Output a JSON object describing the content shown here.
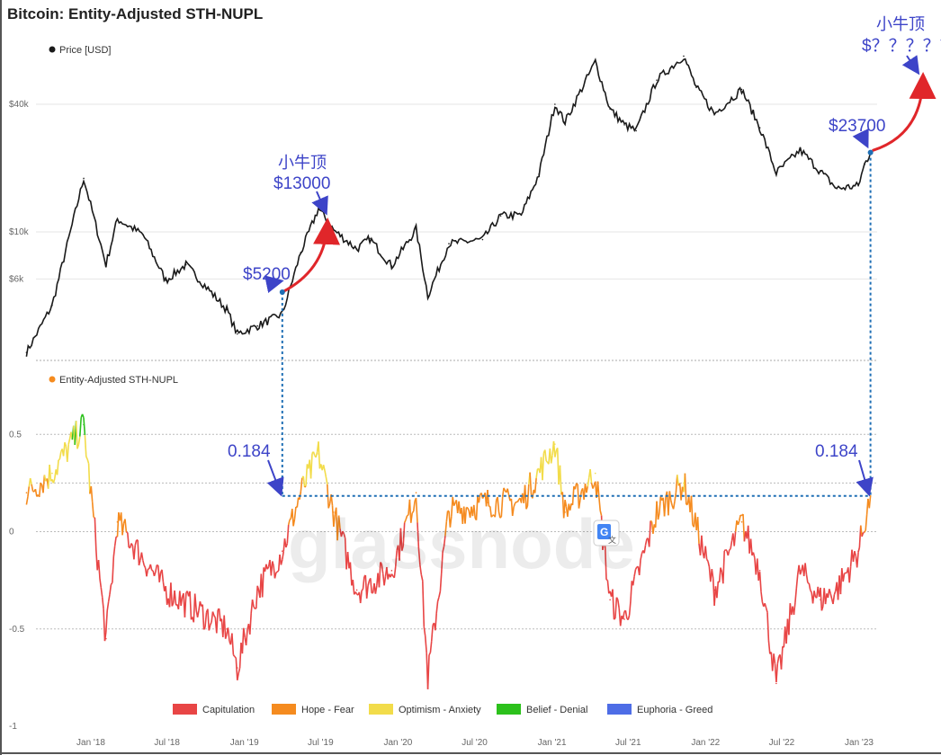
{
  "title": "Bitcoin: Entity-Adjusted STH-NUPL",
  "price_legend": "Price [USD]",
  "nupl_legend": "Entity-Adjusted STH-NUPL",
  "watermark": "glassnode",
  "colors": {
    "price": "#1a1a1a",
    "capitulation": "#e84545",
    "hope_fear": "#f58b1f",
    "optimism_anxiety": "#f2dc4a",
    "belief_denial": "#2cc11c",
    "euphoria_greed": "#4e6de6",
    "annotation": "#3d44c8",
    "arrow_red": "#e0262a",
    "dotted": "#1f6fb5"
  },
  "annotations": {
    "low_price": "$5200",
    "mini_top_label": "小牛顶",
    "mini_top_price": "$13000",
    "current_price": "$23700",
    "future_label": "小牛顶",
    "future_price": "$？？？？？",
    "nupl_left": "0.184",
    "nupl_right": "0.184"
  },
  "chart_data": [
    {
      "type": "line",
      "name": "Price [USD]",
      "yscale": "log",
      "ylim": [
        2500,
        80000
      ],
      "yticks": [
        {
          "value": 6000,
          "label": "$6k"
        },
        {
          "value": 10000,
          "label": "$10k"
        },
        {
          "value": 40000,
          "label": "$40k"
        }
      ],
      "x": [
        "2017-08-01",
        "2017-10-01",
        "2017-12-15",
        "2018-02-06",
        "2018-03-05",
        "2018-05-05",
        "2018-06-28",
        "2018-08-15",
        "2018-11-20",
        "2018-12-15",
        "2019-02-01",
        "2019-04-01",
        "2019-05-15",
        "2019-06-26",
        "2019-08-01",
        "2019-09-25",
        "2019-10-26",
        "2019-12-17",
        "2020-02-13",
        "2020-03-12",
        "2020-05-01",
        "2020-07-20",
        "2020-09-01",
        "2020-10-20",
        "2020-12-01",
        "2021-01-08",
        "2021-02-01",
        "2021-04-14",
        "2021-05-19",
        "2021-06-22",
        "2021-07-20",
        "2021-09-07",
        "2021-11-10",
        "2021-12-10",
        "2022-01-22",
        "2022-03-28",
        "2022-05-10",
        "2022-06-18",
        "2022-08-14",
        "2022-10-01",
        "2022-11-09",
        "2022-12-30",
        "2023-01-14",
        "2023-01-28"
      ],
      "values": [
        2700,
        4500,
        17900,
        7000,
        11500,
        9700,
        5900,
        7000,
        4300,
        3300,
        3600,
        4100,
        8000,
        12900,
        10200,
        8300,
        9300,
        6900,
        10300,
        5000,
        8800,
        9200,
        11900,
        12000,
        18700,
        40000,
        33000,
        63500,
        38000,
        32000,
        30000,
        52000,
        67500,
        48000,
        36000,
        47000,
        31000,
        19000,
        24300,
        19300,
        16000,
        16500,
        20800,
        23700
      ]
    },
    {
      "type": "area",
      "name": "Entity-Adjusted STH-NUPL",
      "ylim": [
        -1,
        0.7
      ],
      "yticks": [
        {
          "value": 0.5,
          "label": "0.5"
        },
        {
          "value": 0,
          "label": "0"
        },
        {
          "value": -0.5,
          "label": "-0.5"
        },
        {
          "value": -1,
          "label": "-1"
        }
      ],
      "x": [
        "2017-08-01",
        "2017-10-01",
        "2017-12-15",
        "2018-02-06",
        "2018-03-05",
        "2018-06-28",
        "2018-11-20",
        "2018-12-15",
        "2019-02-01",
        "2019-04-01",
        "2019-05-15",
        "2019-06-26",
        "2019-08-01",
        "2019-09-25",
        "2019-12-17",
        "2020-02-13",
        "2020-03-12",
        "2020-05-01",
        "2020-08-01",
        "2020-10-20",
        "2021-01-08",
        "2021-02-01",
        "2021-04-14",
        "2021-05-19",
        "2021-06-22",
        "2021-09-07",
        "2021-11-10",
        "2022-01-22",
        "2022-03-28",
        "2022-05-10",
        "2022-06-18",
        "2022-08-14",
        "2022-10-01",
        "2022-11-09",
        "2022-12-30",
        "2023-01-28"
      ],
      "values": [
        0.2,
        0.3,
        0.55,
        -0.55,
        0.05,
        -0.3,
        -0.5,
        -0.7,
        -0.3,
        -0.1,
        0.2,
        0.4,
        0.1,
        -0.3,
        -0.2,
        0.2,
        -0.75,
        0.1,
        0.15,
        0.15,
        0.45,
        0.1,
        0.3,
        -0.35,
        -0.45,
        0.1,
        0.25,
        -0.3,
        0.05,
        -0.2,
        -0.78,
        -0.2,
        -0.35,
        -0.3,
        -0.1,
        0.184
      ]
    }
  ],
  "zones": [
    {
      "name": "Capitulation",
      "color": "#e84545"
    },
    {
      "name": "Hope - Fear",
      "color": "#f58b1f"
    },
    {
      "name": "Optimism - Anxiety",
      "color": "#f2dc4a"
    },
    {
      "name": "Belief - Denial",
      "color": "#2cc11c"
    },
    {
      "name": "Euphoria - Greed",
      "color": "#4e6de6"
    }
  ],
  "x_ticks": [
    {
      "date": "2018-01-01",
      "label": "Jan '18"
    },
    {
      "date": "2018-07-01",
      "label": "Jul '18"
    },
    {
      "date": "2019-01-01",
      "label": "Jan '19"
    },
    {
      "date": "2019-07-01",
      "label": "Jul '19"
    },
    {
      "date": "2020-01-01",
      "label": "Jan '20"
    },
    {
      "date": "2020-07-01",
      "label": "Jul '20"
    },
    {
      "date": "2021-01-01",
      "label": "Jan '21"
    },
    {
      "date": "2021-07-01",
      "label": "Jul '21"
    },
    {
      "date": "2022-01-01",
      "label": "Jan '22"
    },
    {
      "date": "2022-07-01",
      "label": "Jul '22"
    },
    {
      "date": "2023-01-01",
      "label": "Jan '23"
    }
  ]
}
